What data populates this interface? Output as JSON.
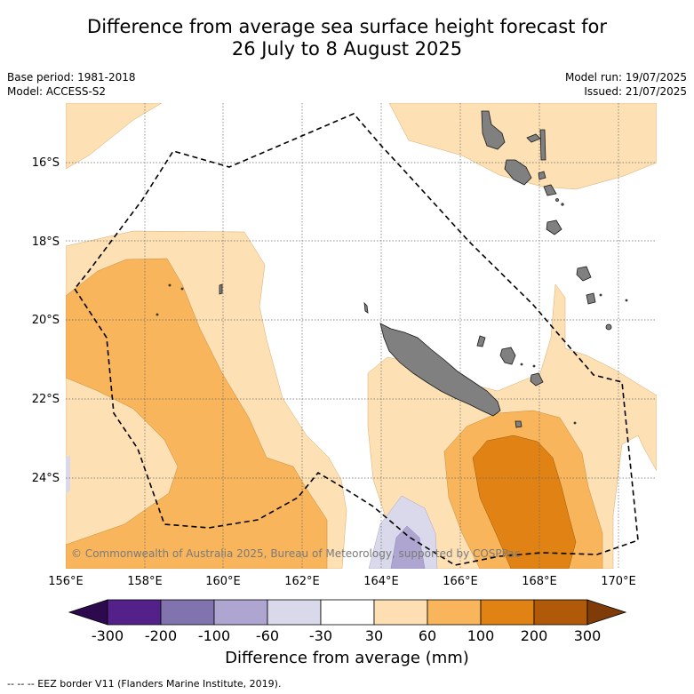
{
  "title_line1": "Difference from average sea surface height forecast for",
  "title_line2": "26 July to 8 August 2025",
  "meta_left": [
    "Base period: 1981-2018",
    "Model: ACCESS-S2"
  ],
  "meta_right": [
    "Model run: 19/07/2025",
    "Issued: 21/07/2025"
  ],
  "copyright": "© Commonwealth of Australia 2025, Bureau of Meteorology, supported by COSPPac",
  "x_ticks": [
    "156°E",
    "158°E",
    "160°E",
    "162°E",
    "164°E",
    "166°E",
    "168°E",
    "170°E"
  ],
  "y_ticks": [
    "16°S",
    "18°S",
    "20°S",
    "22°S",
    "24°S"
  ],
  "colorbar": {
    "labels": [
      "-300",
      "-200",
      "-100",
      "-60",
      "-30",
      "30",
      "60",
      "100",
      "200",
      "300"
    ],
    "colors": [
      "#2d0a4e",
      "#54208a",
      "#8073ae",
      "#aea6d0",
      "#d9d9eb",
      "#ffffff",
      "#fddfb3",
      "#f8b55c",
      "#e08214",
      "#b05a09",
      "#7f3b08"
    ],
    "title": "Difference from average (mm)"
  },
  "footer": "--  --  -- EEZ border V11 (Flanders Marine Institute, 2019).",
  "map_colors": {
    "light_orange": "#fde0b4",
    "mid_orange": "#f8b55c",
    "dark_orange": "#e08214",
    "light_purple": "#d9d9eb",
    "mid_purple": "#aea6d0",
    "land": "#808080",
    "grid": "#666666"
  }
}
